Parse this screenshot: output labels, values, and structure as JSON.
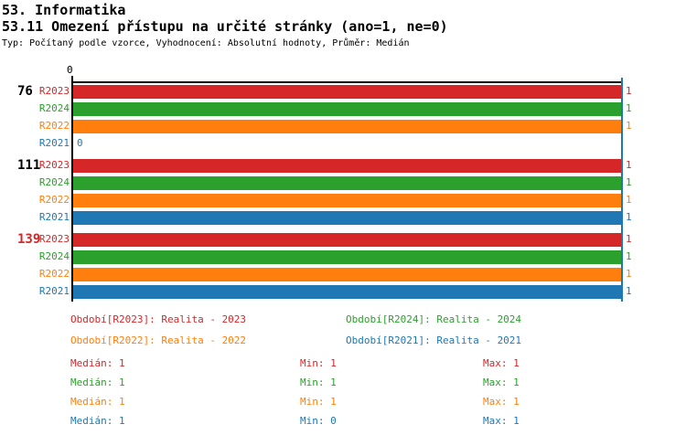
{
  "header": {
    "title_line1": "53. Informatika",
    "title_line2": "53.11 Omezení přístupu na určité stránky (ano=1, ne=0)",
    "meta": "Typ: Počítaný podle vzorce, Vyhodnocení: Absolutní hodnoty, Průměr: Medián"
  },
  "colors": {
    "red": "#d62728",
    "green": "#2ca02c",
    "orange": "#ff7f0e",
    "blue": "#1f77b4",
    "black": "#000000"
  },
  "chart_data": {
    "type": "bar",
    "orientation": "horizontal",
    "title": "53.11 Omezení přístupu na určité stránky (ano=1, ne=0)",
    "xlabel": "",
    "ylabel": "",
    "xlim": [
      0,
      1
    ],
    "axis": {
      "origin_tick_label": "0",
      "median_line_value": 1,
      "median_line_color": "blue"
    },
    "categories": [
      "76",
      "111",
      "139"
    ],
    "series": [
      {
        "name": "R2023",
        "color": "red",
        "values": [
          1,
          1,
          1
        ]
      },
      {
        "name": "R2024",
        "color": "green",
        "values": [
          1,
          1,
          1
        ]
      },
      {
        "name": "R2022",
        "color": "orange",
        "values": [
          1,
          1,
          1
        ]
      },
      {
        "name": "R2021",
        "color": "blue",
        "values": [
          0,
          1,
          1
        ]
      }
    ],
    "groups": [
      {
        "label": "76",
        "label_color": "black",
        "bars": [
          {
            "series": "R2023",
            "value": 1
          },
          {
            "series": "R2024",
            "value": 1
          },
          {
            "series": "R2022",
            "value": 1
          },
          {
            "series": "R2021",
            "value": 0
          }
        ]
      },
      {
        "label": "111",
        "label_color": "black",
        "bars": [
          {
            "series": "R2023",
            "value": 1
          },
          {
            "series": "R2024",
            "value": 1
          },
          {
            "series": "R2022",
            "value": 1
          },
          {
            "series": "R2021",
            "value": 1
          }
        ]
      },
      {
        "label": "139",
        "label_color": "red",
        "bars": [
          {
            "series": "R2023",
            "value": 1
          },
          {
            "series": "R2024",
            "value": 1
          },
          {
            "series": "R2022",
            "value": 1
          },
          {
            "series": "R2021",
            "value": 1
          }
        ]
      }
    ]
  },
  "legend": {
    "items": [
      {
        "label": "Období[R2023]: Realita - 2023",
        "color": "red"
      },
      {
        "label": "Období[R2024]: Realita - 2024",
        "color": "green"
      },
      {
        "label": "Období[R2022]: Realita - 2022",
        "color": "orange"
      },
      {
        "label": "Období[R2021]: Realita - 2021",
        "color": "blue"
      }
    ]
  },
  "stats": {
    "rows": [
      {
        "color": "red",
        "median": "Medián: 1",
        "min": "Min: 1",
        "max": "Max: 1"
      },
      {
        "color": "green",
        "median": "Medián: 1",
        "min": "Min: 1",
        "max": "Max: 1"
      },
      {
        "color": "orange",
        "median": "Medián: 1",
        "min": "Min: 1",
        "max": "Max: 1"
      },
      {
        "color": "blue",
        "median": "Medián: 1",
        "min": "Min: 0",
        "max": "Max: 1"
      }
    ]
  }
}
